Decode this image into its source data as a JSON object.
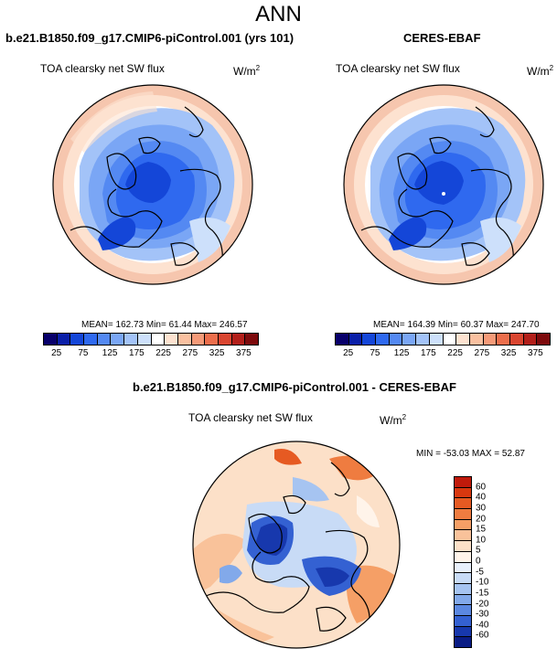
{
  "main_title": "ANN",
  "panels": {
    "model": {
      "title": "b.e21.B1850.f09_g17.CMIP6-piControl.001 (yrs 101)",
      "variable": "TOA clearsky net SW flux",
      "units": "W/m",
      "units_exp": "2",
      "stats": "MEAN= 162.73  Min=  61.44  Max= 246.57"
    },
    "obs": {
      "title": "CERES-EBAF",
      "variable": "TOA clearsky net SW flux",
      "units": "W/m",
      "units_exp": "2",
      "stats": "MEAN= 164.39  Min=  60.37  Max= 247.70"
    },
    "diff": {
      "title": "b.e21.B1850.f09_g17.CMIP6-piControl.001 - CERES-EBAF",
      "variable": "TOA clearsky net SW flux",
      "units": "W/m",
      "units_exp": "2",
      "stats": "MIN = -53.03 MAX =  52.87"
    }
  },
  "colorbar_main": {
    "colors": [
      "#08006b",
      "#0a1fa8",
      "#1446d8",
      "#2f69ef",
      "#5489f2",
      "#7aa6f5",
      "#a3c3f8",
      "#cde0fb",
      "#ffffff",
      "#fde2d0",
      "#f9c0a0",
      "#f59a78",
      "#ec6e4c",
      "#d94530",
      "#b21f1a",
      "#7d0a0c"
    ],
    "ticks": [
      "25",
      "75",
      "125",
      "175",
      "225",
      "275",
      "325",
      "375"
    ]
  },
  "colorbar_diff": {
    "colors": [
      "#c01a0b",
      "#d8380f",
      "#e65a22",
      "#ef7c40",
      "#f59f66",
      "#f9c29a",
      "#fce0c8",
      "#fff4ea",
      "#e8f0fb",
      "#c8dbf6",
      "#a6c4f1",
      "#82a9ea",
      "#5b88e1",
      "#3461d2",
      "#1738ad",
      "#0a1c85"
    ],
    "ticks": [
      "60",
      "40",
      "30",
      "20",
      "15",
      "10",
      "5",
      "0",
      "-5",
      "-10",
      "-15",
      "-20",
      "-30",
      "-40",
      "-60"
    ]
  }
}
